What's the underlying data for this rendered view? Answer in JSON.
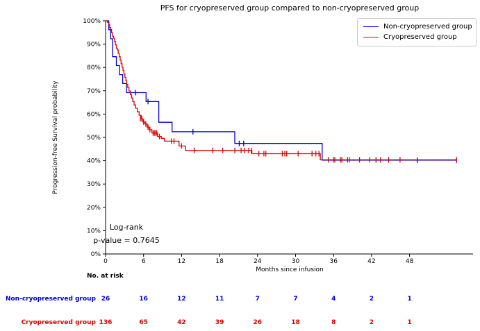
{
  "chart_data": {
    "type": "line",
    "subtype": "kaplan-meier-step",
    "title": "PFS for cryopreserved group compared to non-cryopreserved group",
    "xlabel": "Months since infusion",
    "ylabel": "Progression-free Survival probability",
    "xlim": [
      0,
      58
    ],
    "ylim": [
      0,
      100
    ],
    "x_ticks": [
      0,
      6,
      12,
      18,
      24,
      30,
      36,
      42,
      48
    ],
    "y_ticks": [
      "0%",
      "10%",
      "20%",
      "30%",
      "40%",
      "50%",
      "60%",
      "70%",
      "80%",
      "90%",
      "100%"
    ],
    "grid": false,
    "legend_position": "upper right",
    "series": [
      {
        "name": "Non-cryopreserved group",
        "color": "#0000dd",
        "steps": [
          [
            0,
            100
          ],
          [
            0.5,
            96.2
          ],
          [
            0.8,
            92.3
          ],
          [
            1.1,
            84.6
          ],
          [
            1.7,
            80.8
          ],
          [
            2.2,
            76.9
          ],
          [
            2.7,
            73.1
          ],
          [
            3.3,
            69.2
          ],
          [
            6.4,
            65.4
          ],
          [
            8.4,
            56.5
          ],
          [
            10.5,
            52.4
          ],
          [
            20.4,
            47.4
          ],
          [
            34.2,
            40.2
          ]
        ],
        "end_time": 55.4,
        "censors": [
          [
            4.7,
            69.2
          ],
          [
            6.7,
            65.4
          ],
          [
            13.8,
            52.4
          ],
          [
            21.1,
            47.4
          ],
          [
            21.8,
            47.4
          ],
          [
            49.2,
            40.2
          ],
          [
            55.4,
            40.2
          ]
        ]
      },
      {
        "name": "Cryopreserved group",
        "color": "#dd0000",
        "steps": [
          [
            0,
            100
          ],
          [
            0.3,
            99.3
          ],
          [
            0.5,
            98.5
          ],
          [
            0.65,
            97.1
          ],
          [
            0.8,
            96.3
          ],
          [
            0.95,
            94.9
          ],
          [
            1.1,
            93.4
          ],
          [
            1.25,
            92.6
          ],
          [
            1.4,
            91.2
          ],
          [
            1.55,
            89.7
          ],
          [
            1.7,
            88.2
          ],
          [
            1.85,
            87.5
          ],
          [
            2.0,
            86.0
          ],
          [
            2.15,
            84.6
          ],
          [
            2.3,
            83.1
          ],
          [
            2.45,
            81.6
          ],
          [
            2.6,
            80.1
          ],
          [
            2.75,
            78.7
          ],
          [
            2.9,
            77.2
          ],
          [
            3.05,
            75.7
          ],
          [
            3.2,
            74.3
          ],
          [
            3.35,
            72.8
          ],
          [
            3.5,
            71.3
          ],
          [
            3.7,
            69.9
          ],
          [
            3.9,
            68.4
          ],
          [
            4.1,
            66.9
          ],
          [
            4.3,
            65.4
          ],
          [
            4.5,
            63.9
          ],
          [
            4.75,
            62.5
          ],
          [
            5.0,
            61.0
          ],
          [
            5.3,
            59.5
          ],
          [
            5.6,
            58.0
          ],
          [
            5.9,
            56.6
          ],
          [
            6.2,
            55.8
          ],
          [
            6.55,
            54.4
          ],
          [
            6.9,
            53.3
          ],
          [
            7.3,
            51.9
          ],
          [
            8.2,
            50.4
          ],
          [
            8.8,
            49.6
          ],
          [
            9.3,
            48.4
          ],
          [
            11.6,
            46.3
          ],
          [
            12.6,
            44.4
          ],
          [
            23.1,
            43.0
          ],
          [
            33.9,
            40.4
          ]
        ],
        "end_time": 55.4,
        "censors": [
          [
            5.5,
            58.0
          ],
          [
            5.7,
            58.0
          ],
          [
            6.0,
            56.6
          ],
          [
            6.35,
            55.8
          ],
          [
            6.7,
            54.4
          ],
          [
            7.0,
            53.3
          ],
          [
            7.5,
            51.9
          ],
          [
            7.7,
            51.9
          ],
          [
            7.9,
            51.9
          ],
          [
            8.1,
            51.9
          ],
          [
            8.5,
            50.4
          ],
          [
            10.4,
            48.4
          ],
          [
            10.8,
            48.4
          ],
          [
            12.0,
            46.3
          ],
          [
            14.0,
            44.4
          ],
          [
            16.9,
            44.4
          ],
          [
            18.5,
            44.4
          ],
          [
            20.4,
            44.4
          ],
          [
            21.4,
            44.4
          ],
          [
            21.9,
            44.4
          ],
          [
            22.6,
            44.4
          ],
          [
            23.0,
            44.4
          ],
          [
            24.2,
            43.0
          ],
          [
            25.0,
            43.0
          ],
          [
            25.3,
            43.0
          ],
          [
            27.9,
            43.0
          ],
          [
            28.3,
            43.0
          ],
          [
            28.6,
            43.0
          ],
          [
            30.4,
            43.0
          ],
          [
            32.6,
            43.0
          ],
          [
            33.2,
            43.0
          ],
          [
            33.7,
            43.0
          ],
          [
            35.2,
            40.4
          ],
          [
            36.0,
            40.4
          ],
          [
            36.2,
            40.4
          ],
          [
            37.1,
            40.4
          ],
          [
            37.3,
            40.4
          ],
          [
            38.2,
            40.4
          ],
          [
            38.5,
            40.4
          ],
          [
            40.1,
            40.4
          ],
          [
            41.7,
            40.4
          ],
          [
            42.7,
            40.4
          ],
          [
            43.4,
            40.4
          ],
          [
            44.7,
            40.4
          ],
          [
            46.5,
            40.4
          ],
          [
            55.4,
            40.4
          ]
        ]
      }
    ],
    "annotation": {
      "line1": "Log-rank",
      "line2": "p-value = 0.7645"
    }
  },
  "risk_table": {
    "header": "No. at risk",
    "columns_months": [
      0,
      6,
      12,
      18,
      24,
      30,
      36,
      42,
      48
    ],
    "rows": [
      {
        "label": "Non-cryopreserved group",
        "color": "#0000dd",
        "values": [
          26,
          16,
          12,
          11,
          7,
          7,
          4,
          2,
          1
        ]
      },
      {
        "label": "Cryopreserved group",
        "color": "#dd0000",
        "values": [
          136,
          65,
          42,
          39,
          26,
          18,
          8,
          2,
          1
        ]
      }
    ]
  }
}
